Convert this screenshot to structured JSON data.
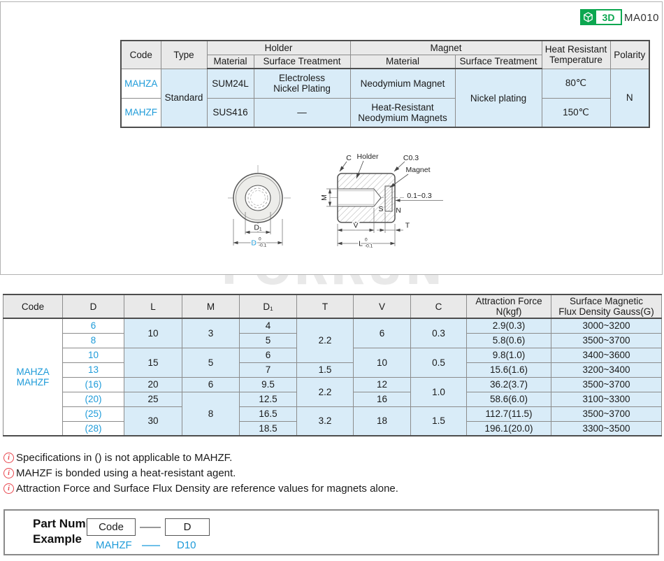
{
  "badge": {
    "label_3d": "3D",
    "page_code": "MA010"
  },
  "watermark": "FORRUN",
  "note_icon": "i",
  "colors": {
    "accent_blue": "#1e9bd9",
    "badge_green": "#0ca750",
    "note_red": "#e8454d",
    "cell_blue": "#d9ecf8",
    "header_gray": "#e9e9e9"
  },
  "spec_table": {
    "header_rows": 2,
    "rows": [
      [
        {
          "t": "Code",
          "rs": 2
        },
        {
          "t": "Type",
          "rs": 2
        },
        {
          "t": "Holder",
          "cs": 2
        },
        {
          "t": "Magnet",
          "cs": 2
        },
        {
          "t": "Heat Resistant\nTemperature",
          "rs": 2
        },
        {
          "t": "Polarity",
          "rs": 2
        }
      ],
      [
        {
          "t": "Material"
        },
        {
          "t": "Surface Treatment"
        },
        {
          "t": "Material"
        },
        {
          "t": "Surface Treatment"
        }
      ],
      [
        {
          "t": "MAHZA",
          "cls": "code"
        },
        {
          "t": "Standard",
          "rs": 2
        },
        {
          "t": "SUM24L"
        },
        {
          "t": "Electroless\nNickel Plating"
        },
        {
          "t": "Neodymium Magnet"
        },
        {
          "t": "Nickel plating",
          "rs": 2
        },
        {
          "t": "80℃"
        },
        {
          "t": "N",
          "rs": 2
        }
      ],
      [
        {
          "t": "MAHZF",
          "cls": "code"
        },
        {
          "t": "SUS416"
        },
        {
          "t": "—"
        },
        {
          "t": "Heat-Resistant\nNeodymium Magnets"
        },
        {
          "t": "150℃"
        }
      ]
    ]
  },
  "dim_table": {
    "header_rows": 1,
    "rows": [
      [
        {
          "t": "Code"
        },
        {
          "t": "D"
        },
        {
          "t": "L"
        },
        {
          "t": "M"
        },
        {
          "t": "D₁"
        },
        {
          "t": "T"
        },
        {
          "t": "V"
        },
        {
          "t": "C"
        },
        {
          "t": "Attraction Force\nN(kgf)"
        },
        {
          "t": "Surface Magnetic\nFlux Density Gauss(G)"
        }
      ],
      [
        {
          "t": "MAHZA\nMAHZF",
          "rs": 8,
          "cls": "code"
        },
        {
          "t": "6",
          "cls": "code"
        },
        {
          "t": "10",
          "rs": 2
        },
        {
          "t": "3",
          "rs": 2
        },
        {
          "t": "4"
        },
        {
          "t": "2.2",
          "rs": 3
        },
        {
          "t": "6",
          "rs": 2
        },
        {
          "t": "0.3",
          "rs": 2
        },
        {
          "t": "2.9(0.3)"
        },
        {
          "t": "3000~3200"
        }
      ],
      [
        {
          "t": "8",
          "cls": "code"
        },
        {
          "t": "5"
        },
        {
          "t": "5.8(0.6)"
        },
        {
          "t": "3500~3700"
        }
      ],
      [
        {
          "t": "10",
          "cls": "code"
        },
        {
          "t": "15",
          "rs": 2
        },
        {
          "t": "5",
          "rs": 2
        },
        {
          "t": "6"
        },
        {
          "t": "10",
          "rs": 2
        },
        {
          "t": "0.5",
          "rs": 2
        },
        {
          "t": "9.8(1.0)"
        },
        {
          "t": "3400~3600"
        }
      ],
      [
        {
          "t": "13",
          "cls": "code"
        },
        {
          "t": "7"
        },
        {
          "t": "1.5"
        },
        {
          "t": "15.6(1.6)"
        },
        {
          "t": "3200~3400"
        }
      ],
      [
        {
          "t": "(16)",
          "cls": "code"
        },
        {
          "t": "20"
        },
        {
          "t": "6"
        },
        {
          "t": "9.5"
        },
        {
          "t": "2.2",
          "rs": 2
        },
        {
          "t": "12"
        },
        {
          "t": "1.0",
          "rs": 2
        },
        {
          "t": "36.2(3.7)"
        },
        {
          "t": "3500~3700"
        }
      ],
      [
        {
          "t": "(20)",
          "cls": "code"
        },
        {
          "t": "25"
        },
        {
          "t": "8",
          "rs": 3
        },
        {
          "t": "12.5"
        },
        {
          "t": "16"
        },
        {
          "t": "58.6(6.0)"
        },
        {
          "t": "3100~3300"
        }
      ],
      [
        {
          "t": "(25)",
          "cls": "code"
        },
        {
          "t": "30",
          "rs": 2
        },
        {
          "t": "16.5"
        },
        {
          "t": "3.2",
          "rs": 2
        },
        {
          "t": "18",
          "rs": 2
        },
        {
          "t": "1.5",
          "rs": 2
        },
        {
          "t": "112.7(11.5)"
        },
        {
          "t": "3500~3700"
        }
      ],
      [
        {
          "t": "(28)",
          "cls": "code"
        },
        {
          "t": "18.5"
        },
        {
          "t": "196.1(20.0)"
        },
        {
          "t": "3300~3500"
        }
      ]
    ]
  },
  "drawing": {
    "c": "C",
    "holder": "Holder",
    "c03": "C0.3",
    "magnet": "Magnet",
    "m": "M",
    "gap": "0.1~0.3",
    "s": "S",
    "n": "N",
    "v": "V",
    "t": "T",
    "l": "L",
    "d1": "D₁",
    "d": "D",
    "tol_top": "0",
    "tol_bottom": "-0.1"
  },
  "notes": [
    "Specifications in () is not applicable to MAHZF.",
    "MAHZF is bonded using a heat-resistant agent.",
    "Attraction Force and Surface Flux Density are reference values for magnets alone."
  ],
  "part_number": {
    "title_line1": "Part Number",
    "title_line2": "Example",
    "code_box": "Code",
    "d_box": "D",
    "example_code": "MAHZF",
    "example_d": "D10"
  }
}
